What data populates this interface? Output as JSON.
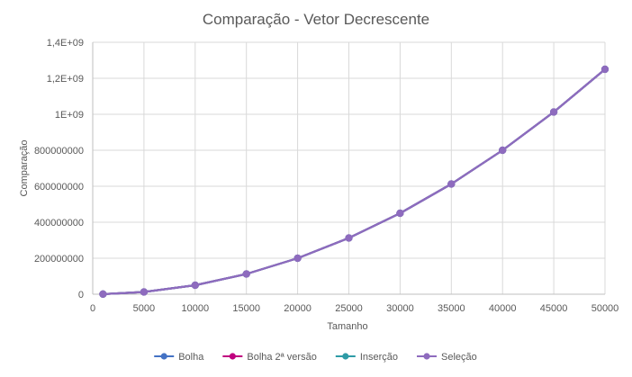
{
  "chart_data": {
    "type": "line",
    "title": "Comparação - Vetor Decrescente",
    "xlabel": "Tamanho",
    "ylabel": "Comparação",
    "x": [
      1000,
      5000,
      10000,
      15000,
      20000,
      25000,
      30000,
      35000,
      40000,
      45000,
      50000
    ],
    "xlim": [
      0,
      50000
    ],
    "ylim": [
      0,
      1400000000
    ],
    "x_ticks": [
      0,
      5000,
      10000,
      15000,
      20000,
      25000,
      30000,
      35000,
      40000,
      45000,
      50000
    ],
    "x_tick_labels": [
      "0",
      "5000",
      "10000",
      "15000",
      "20000",
      "25000",
      "30000",
      "35000",
      "40000",
      "45000",
      "50000"
    ],
    "y_ticks": [
      0,
      200000000,
      400000000,
      600000000,
      800000000,
      1000000000,
      1200000000,
      1400000000
    ],
    "y_tick_labels": [
      "0",
      "200000000",
      "400000000",
      "600000000",
      "800000000",
      "1E+09",
      "1,2E+09",
      "1,4E+09"
    ],
    "grid": true,
    "legend_position": "bottom",
    "series": [
      {
        "name": "Bolha",
        "color": "#4472C4",
        "values": [
          499500,
          12497500,
          49995000,
          112492500,
          199990000,
          312487500,
          449985000,
          612482500,
          799980000,
          1012477500,
          1249975000
        ]
      },
      {
        "name": "Bolha 2ª versão",
        "color": "#C0007F",
        "values": [
          499500,
          12497500,
          49995000,
          112492500,
          199990000,
          312487500,
          449985000,
          612482500,
          799980000,
          1012477500,
          1249975000
        ]
      },
      {
        "name": "Inserção",
        "color": "#2E9BA6",
        "values": [
          499500,
          12497500,
          49995000,
          112492500,
          199990000,
          312487500,
          449985000,
          612482500,
          799980000,
          1012477500,
          1249975000
        ]
      },
      {
        "name": "Seleção",
        "color": "#8E6BBE",
        "values": [
          499500,
          12497500,
          49995000,
          112492500,
          199990000,
          312487500,
          449985000,
          612482500,
          799980000,
          1012477500,
          1249975000
        ]
      }
    ]
  }
}
